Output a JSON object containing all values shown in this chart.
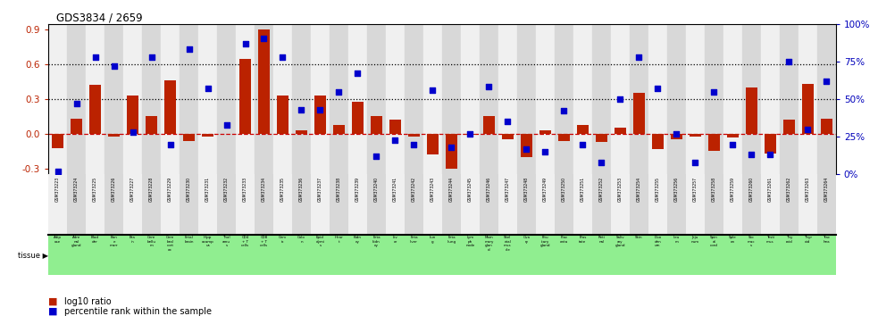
{
  "title": "GDS3834 / 2659",
  "gsm_ids": [
    "GSM373223",
    "GSM373224",
    "GSM373225",
    "GSM373226",
    "GSM373227",
    "GSM373228",
    "GSM373229",
    "GSM373230",
    "GSM373231",
    "GSM373232",
    "GSM373233",
    "GSM373234",
    "GSM373235",
    "GSM373236",
    "GSM373237",
    "GSM373238",
    "GSM373239",
    "GSM373240",
    "GSM373241",
    "GSM373242",
    "GSM373243",
    "GSM373244",
    "GSM373245",
    "GSM373246",
    "GSM373247",
    "GSM373248",
    "GSM373249",
    "GSM373250",
    "GSM373251",
    "GSM373252",
    "GSM373253",
    "GSM373254",
    "GSM373255",
    "GSM373256",
    "GSM373257",
    "GSM373258",
    "GSM373259",
    "GSM373260",
    "GSM373261",
    "GSM373262",
    "GSM373263",
    "GSM373264"
  ],
  "log10_ratio": [
    -0.12,
    0.13,
    0.42,
    -0.02,
    0.33,
    0.15,
    0.46,
    -0.06,
    -0.02,
    0.0,
    0.65,
    0.9,
    0.33,
    0.03,
    0.33,
    0.08,
    0.28,
    0.15,
    0.12,
    -0.02,
    -0.18,
    -0.3,
    -0.01,
    0.15,
    -0.05,
    -0.2,
    0.03,
    -0.06,
    0.08,
    -0.07,
    0.05,
    0.35,
    -0.13,
    -0.05,
    -0.02,
    -0.15,
    -0.03,
    0.4,
    -0.17,
    0.12,
    0.43,
    0.13
  ],
  "percentile": [
    2,
    47,
    78,
    72,
    28,
    78,
    20,
    83,
    57,
    33,
    87,
    90,
    78,
    43,
    43,
    55,
    67,
    12,
    23,
    20,
    56,
    18,
    27,
    58,
    35,
    17,
    15,
    42,
    20,
    8,
    50,
    78,
    57,
    27,
    8,
    55,
    20,
    13,
    13,
    75,
    30,
    62
  ],
  "bar_color": "#bb2200",
  "scatter_color": "#0000cc",
  "background_light": "#f0f0f0",
  "background_dark": "#d8d8d8",
  "tissue_bg": "#90ee90",
  "ylim": [
    -0.35,
    0.95
  ],
  "yticks_left": [
    -0.3,
    0.0,
    0.3,
    0.6,
    0.9
  ],
  "yticks_right": [
    0,
    25,
    50,
    75,
    100
  ],
  "hlines": [
    0.3,
    0.6
  ],
  "zero_line_color": "#cc0000",
  "dotted_line_color": "#000000"
}
